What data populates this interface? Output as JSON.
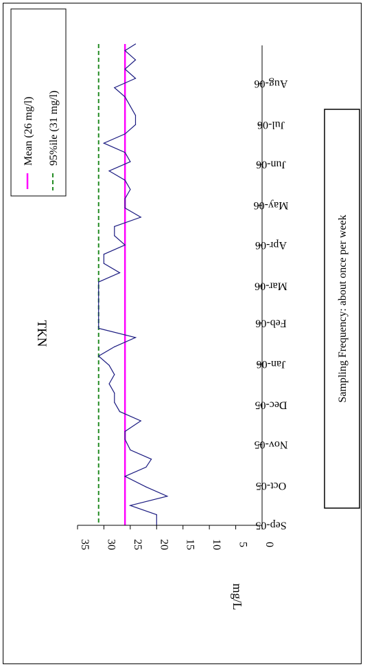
{
  "chart_data": {
    "type": "line",
    "title": "TKN",
    "ylabel": "mg/L",
    "xlabel": "",
    "ylim": [
      0,
      35
    ],
    "y_ticks": [
      0,
      5,
      10,
      15,
      20,
      25,
      30,
      35
    ],
    "x_tick_labels": [
      "Sep-05",
      "Oct-05",
      "Nov-05",
      "Dec-05",
      "Jan-06",
      "Feb-06",
      "Mar-06",
      "Apr-06",
      "May-06",
      "Jun-06",
      "Jul-06",
      "Aug-06"
    ],
    "x_ticks": [
      "2005-09-01",
      "2005-10-01",
      "2005-11-01",
      "2005-12-01",
      "2006-01-01",
      "2006-02-01",
      "2006-03-01",
      "2006-04-01",
      "2006-05-01",
      "2006-06-01",
      "2006-07-01",
      "2006-08-01"
    ],
    "x_range": [
      "2005-09-01",
      "2006-08-31"
    ],
    "series": [
      {
        "name": "",
        "color": "#1a1a80",
        "style": "solid",
        "x": [
          "2005-09-01",
          "2005-09-09",
          "2005-09-16",
          "2005-09-23",
          "2005-09-30",
          "2005-10-08",
          "2005-10-15",
          "2005-10-21",
          "2005-10-28",
          "2005-11-05",
          "2005-11-11",
          "2005-11-19",
          "2005-11-26",
          "2005-12-03",
          "2005-12-10",
          "2005-12-17",
          "2005-12-24",
          "2005-12-31",
          "2006-01-07",
          "2006-01-14",
          "2006-01-21",
          "2006-01-28",
          "2006-02-04",
          "2006-02-11",
          "2006-02-18",
          "2006-02-25",
          "2006-03-04",
          "2006-03-11",
          "2006-03-18",
          "2006-03-25",
          "2006-04-01",
          "2006-04-08",
          "2006-04-15",
          "2006-04-22",
          "2006-04-29",
          "2006-05-06",
          "2006-05-13",
          "2006-05-20",
          "2006-05-27",
          "2006-06-03",
          "2006-06-10",
          "2006-06-17",
          "2006-06-24",
          "2006-07-01",
          "2006-07-08",
          "2006-07-15",
          "2006-07-22",
          "2006-07-29",
          "2006-08-05",
          "2006-08-12",
          "2006-08-19",
          "2006-08-26",
          "2006-08-31"
        ],
        "y": [
          20,
          20,
          25,
          18,
          22,
          26,
          22,
          21,
          25,
          26,
          26,
          23,
          27,
          28,
          28,
          29,
          28,
          29,
          31,
          28,
          24,
          31,
          31,
          31,
          31,
          31,
          31,
          27,
          30,
          30,
          26,
          28,
          28,
          23,
          26,
          26,
          25,
          26,
          29,
          25,
          26,
          30,
          26,
          24,
          24,
          25,
          26,
          28,
          24,
          26,
          24,
          26,
          24
        ]
      },
      {
        "name": "Mean (26 mg/l)",
        "color": "#ff00ff",
        "style": "solid",
        "value": 26
      },
      {
        "name": "95%ile (31 mg/l)",
        "color": "#228b22",
        "style": "dashed",
        "value": 31
      }
    ],
    "legend_position": "top-left",
    "annotation": "Sampling Frequency: about once per week",
    "grid": false
  }
}
